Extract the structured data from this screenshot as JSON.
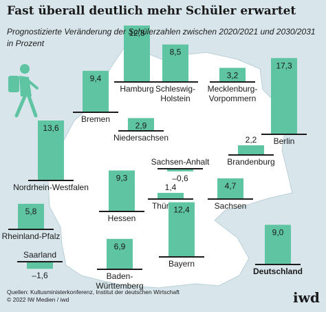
{
  "header": {
    "title": "Fast überall deutlich mehr Schüler erwartet",
    "subtitle_line1": "Prognostizierte Veränderung der Schülerzahlen zwischen 2020/2021 und 2030/2031",
    "subtitle_line2": "in Prozent"
  },
  "footer": {
    "source_line1": "Quellen: Kultusministerkonferenz, Institut der deutschen Wirtschaft",
    "source_line2": "© 2022 IW Medien / iwd",
    "logo_text": "iwd"
  },
  "colors": {
    "bar_fill": "#5ec4a2",
    "bar_stroke": "#1a1a1a",
    "map_fill": "#ffffff",
    "background": "#d8e6ec"
  },
  "icon": "walking-student-icon",
  "chart_data": {
    "type": "bar",
    "unit": "Prozent",
    "categories": [
      "Hamburg",
      "Schleswig-Holstein",
      "Mecklenburg-Vorpommern",
      "Bremen",
      "Berlin",
      "Niedersachsen",
      "Brandenburg",
      "Sachsen-Anhalt",
      "Nordrhein-Westfalen",
      "Hessen",
      "Thüringen",
      "Sachsen",
      "Rheinland-Pfalz",
      "Saarland",
      "Baden-Württemberg",
      "Bayern",
      "Deutschland"
    ],
    "values": [
      12.8,
      8.5,
      3.2,
      9.4,
      17.3,
      2.9,
      2.2,
      -0.6,
      13.6,
      9.3,
      1.4,
      4.7,
      5.8,
      -1.6,
      6.9,
      12.4,
      9.0
    ],
    "value_labels": [
      "12,8",
      "8,5",
      "3,2",
      "9,4",
      "17,3",
      "2,9",
      "2,2",
      "–0,6",
      "13,6",
      "9,3",
      "1,4",
      "4,7",
      "5,8",
      "–1,6",
      "6,9",
      "12,4",
      "9,0"
    ],
    "label_lines": [
      [
        "Hamburg"
      ],
      [
        "Schleswig-",
        "Holstein"
      ],
      [
        "Mecklenburg-",
        "Vorpommern"
      ],
      [
        "Bremen"
      ],
      [
        "Berlin"
      ],
      [
        "Niedersachsen"
      ],
      [
        "Brandenburg"
      ],
      [
        "Sachsen-Anhalt"
      ],
      [
        "Nordrhein-Westfalen"
      ],
      [
        "Hessen"
      ],
      [
        "Thüringen"
      ],
      [
        "Sachsen"
      ],
      [
        "Rheinland-Pfalz"
      ],
      [
        "Saarland"
      ],
      [
        "Baden-",
        "Württemberg"
      ],
      [
        "Bayern"
      ],
      [
        "Deutschland"
      ]
    ],
    "highlight": "Deutschland"
  }
}
